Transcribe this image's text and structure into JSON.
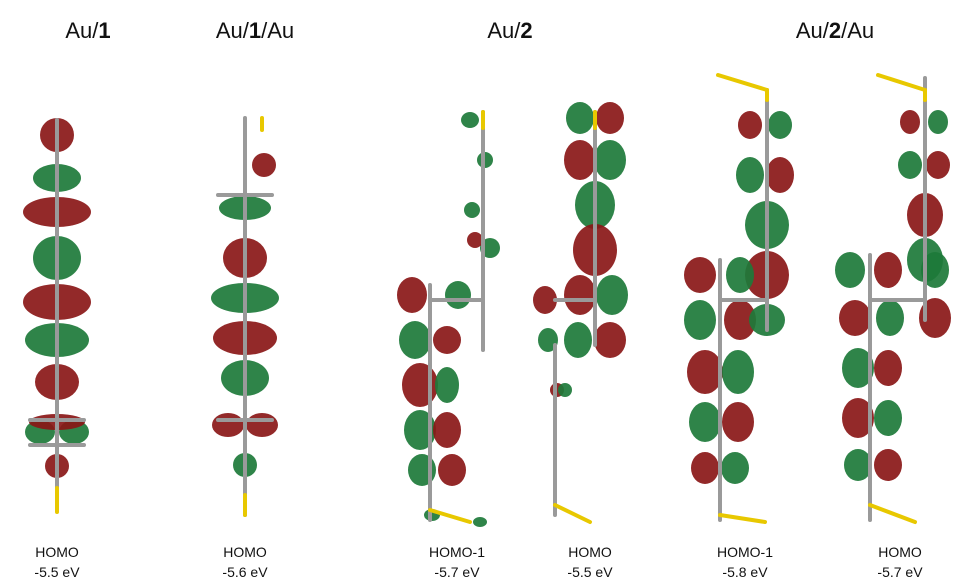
{
  "headings": [
    {
      "prefix": "Au/",
      "bold": "1"
    },
    {
      "prefix": "Au/",
      "bold": "1",
      "suffix": "/Au"
    },
    {
      "prefix": "Au/",
      "bold": "2"
    },
    {
      "prefix": "Au/",
      "bold": "2",
      "suffix": "/Au"
    }
  ],
  "panels": [
    {
      "orbital": "HOMO",
      "energy": "-5.5 eV"
    },
    {
      "orbital": "HOMO",
      "energy": "-5.6 eV"
    },
    {
      "orbital": "HOMO-1",
      "energy": "-5.7 eV"
    },
    {
      "orbital": "HOMO",
      "energy": "-5.5 eV"
    },
    {
      "orbital": "HOMO-1",
      "energy": "-5.8 eV"
    },
    {
      "orbital": "HOMO",
      "energy": "-5.7 eV"
    }
  ]
}
